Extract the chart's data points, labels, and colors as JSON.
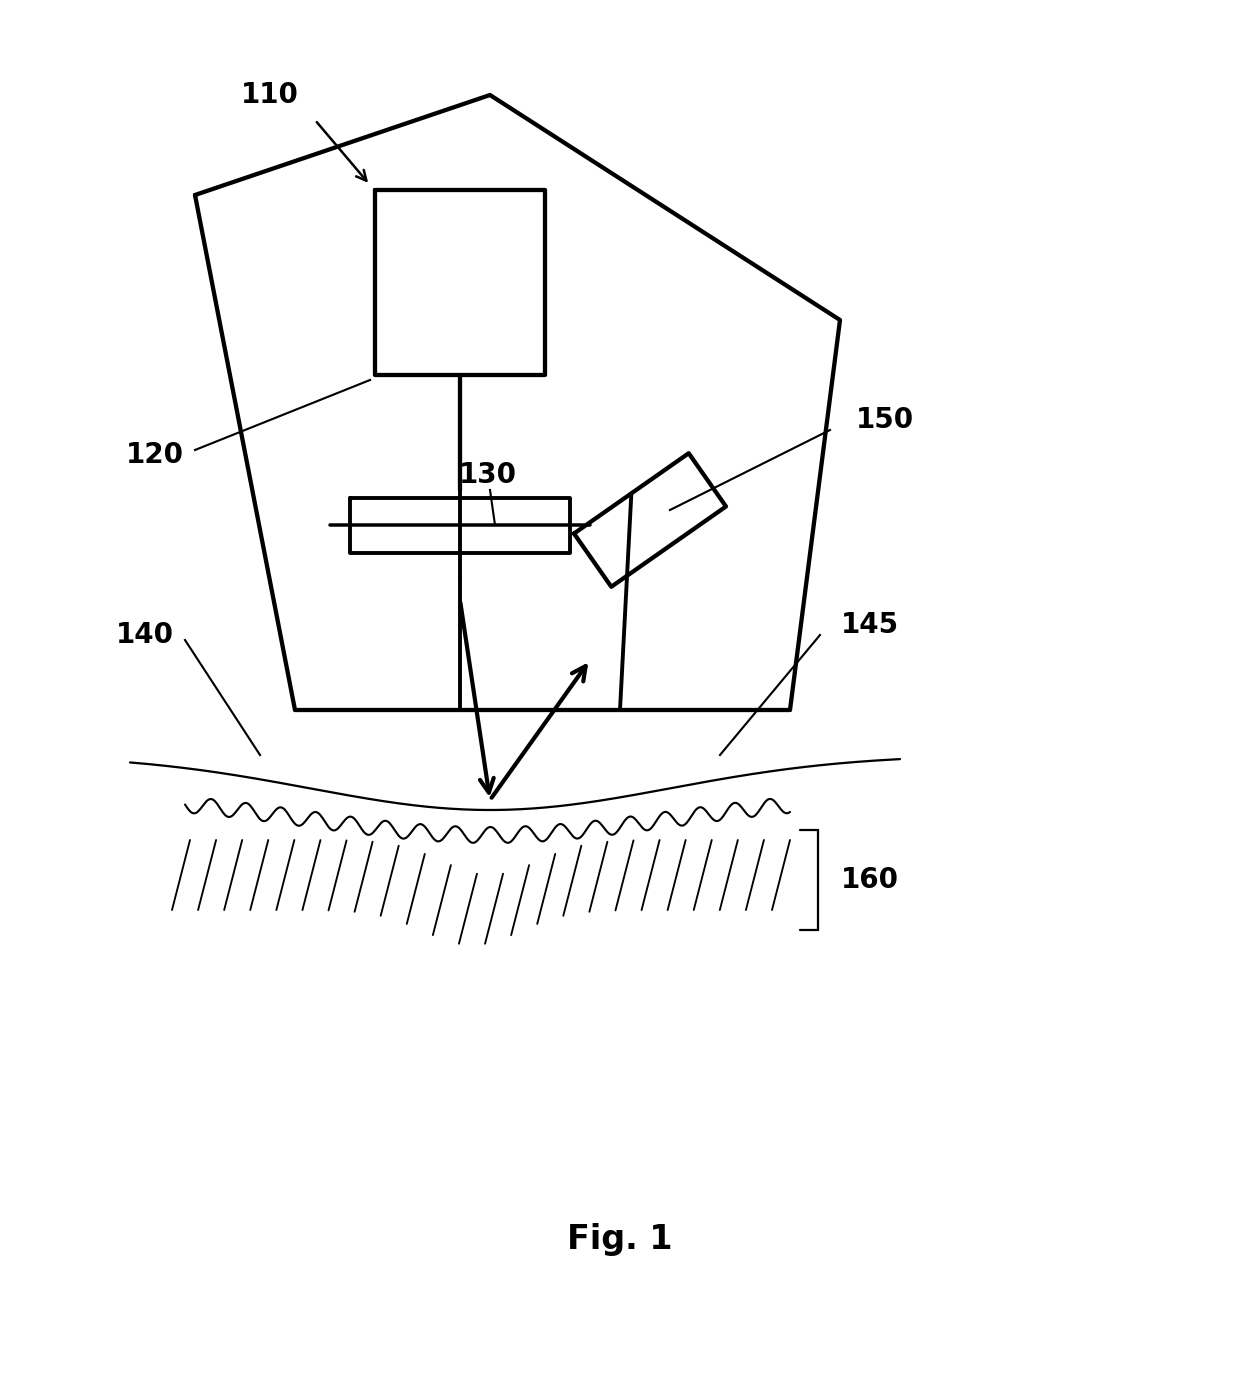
{
  "bg_color": "#ffffff",
  "line_color": "#000000",
  "lw_main": 2.8,
  "lw_thin": 1.8,
  "fig_label": "Fig. 1",
  "font_size_label": 20,
  "font_size_fig": 24
}
